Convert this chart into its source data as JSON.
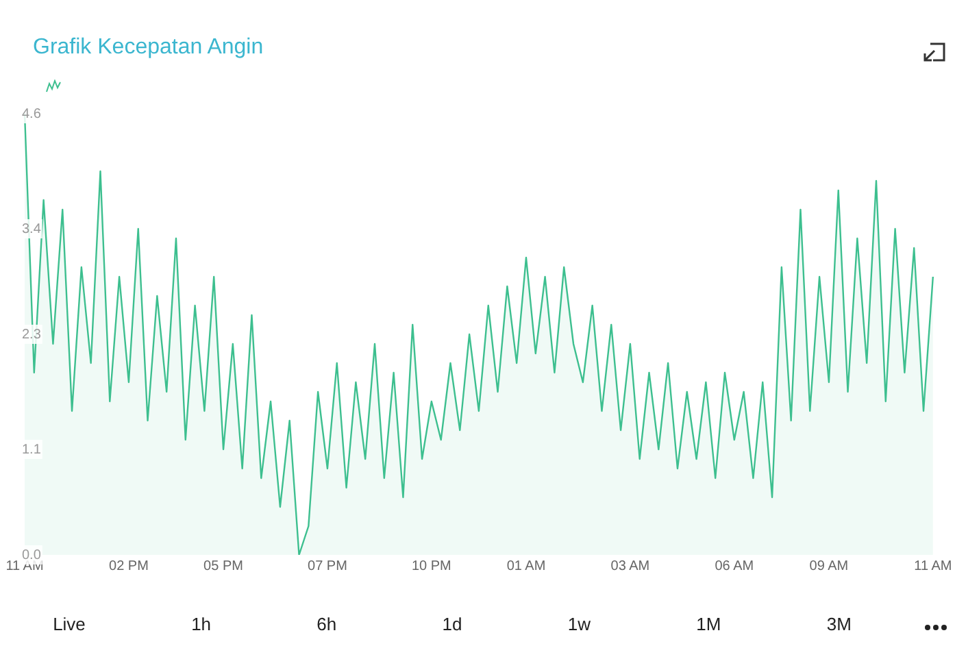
{
  "chart_data": {
    "type": "area",
    "title": "Grafik Kecepatan Angin",
    "categories": [
      "11 AM",
      null,
      null,
      null,
      null,
      null,
      null,
      null,
      null,
      null,
      null,
      "02 PM",
      null,
      null,
      null,
      null,
      null,
      null,
      null,
      null,
      null,
      "05 PM",
      null,
      null,
      null,
      null,
      null,
      null,
      null,
      null,
      null,
      null,
      "07 PM",
      null,
      null,
      null,
      null,
      null,
      null,
      null,
      null,
      null,
      null,
      "10 PM",
      null,
      null,
      null,
      null,
      null,
      null,
      null,
      null,
      null,
      "01 AM",
      null,
      null,
      null,
      null,
      null,
      null,
      null,
      null,
      null,
      null,
      "03 AM",
      null,
      null,
      null,
      null,
      null,
      null,
      null,
      null,
      null,
      null,
      "06 AM",
      null,
      null,
      null,
      null,
      null,
      null,
      null,
      null,
      null,
      "09 AM",
      null,
      null,
      null,
      null,
      null,
      null,
      null,
      null,
      null,
      null,
      "11 AM"
    ],
    "series": [
      {
        "color": "#3dbf8f",
        "values": [
          4.6,
          1.9,
          3.7,
          2.2,
          3.6,
          1.5,
          3.0,
          2.0,
          4.0,
          1.6,
          2.9,
          1.8,
          3.4,
          1.4,
          2.7,
          1.7,
          3.3,
          1.2,
          2.6,
          1.5,
          2.9,
          1.1,
          2.2,
          0.9,
          2.5,
          0.8,
          1.6,
          0.5,
          1.4,
          0.0,
          0.3,
          1.7,
          0.9,
          2.0,
          0.7,
          1.8,
          1.0,
          2.2,
          0.8,
          1.9,
          0.6,
          2.4,
          1.0,
          1.6,
          1.2,
          2.0,
          1.3,
          2.3,
          1.5,
          2.6,
          1.7,
          2.8,
          2.0,
          3.1,
          2.1,
          2.9,
          1.9,
          3.0,
          2.2,
          1.8,
          2.6,
          1.5,
          2.4,
          1.3,
          2.2,
          1.0,
          1.9,
          1.1,
          2.0,
          0.9,
          1.7,
          1.0,
          1.8,
          0.8,
          1.9,
          1.2,
          1.7,
          0.8,
          1.8,
          0.6,
          3.0,
          1.4,
          3.6,
          1.5,
          2.9,
          1.8,
          3.8,
          1.7,
          3.3,
          2.0,
          3.9,
          1.6,
          3.4,
          1.9,
          3.2,
          1.5,
          2.9
        ]
      }
    ],
    "ylim": [
      0,
      4.6
    ],
    "yticks": [
      {
        "value": 0,
        "label": "0.0"
      },
      1.1,
      2.3,
      3.4,
      4.6
    ],
    "grid": false,
    "legend": false,
    "marker": "none",
    "line_style": "solid",
    "annotations": [
      "Live",
      "1h",
      "6h",
      "1d",
      "1w",
      "1M",
      "3M"
    ]
  }
}
